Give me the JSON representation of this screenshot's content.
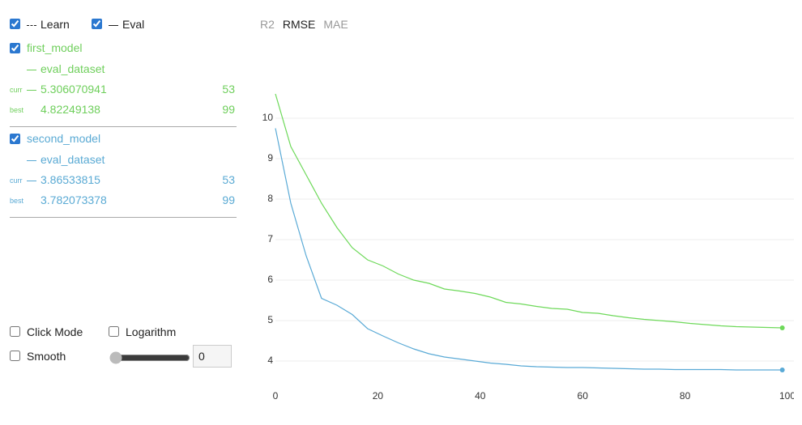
{
  "controls": {
    "learn": "Learn",
    "eval": "Eval",
    "click_mode": "Click Mode",
    "logarithm": "Logarithm",
    "smooth": "Smooth",
    "smooth_value": 0
  },
  "models": [
    {
      "name": "first_model",
      "dataset": "eval_dataset",
      "curr_label": "curr",
      "curr_value": 5.306070941,
      "curr_iter": 53,
      "best_label": "best",
      "best_value": 4.82249138,
      "best_iter": 99,
      "color": "#6fcf5c"
    },
    {
      "name": "second_model",
      "dataset": "eval_dataset",
      "curr_label": "curr",
      "curr_value": 3.86533815,
      "curr_iter": 53,
      "best_label": "best",
      "best_value": 3.782073378,
      "best_iter": 99,
      "color": "#5aaad4"
    }
  ],
  "tabs": [
    "R2",
    "RMSE",
    "MAE"
  ],
  "active_tab": 1,
  "chart_data": {
    "type": "line",
    "x": [
      0,
      3,
      6,
      9,
      12,
      15,
      18,
      21,
      24,
      27,
      30,
      33,
      36,
      39,
      42,
      45,
      48,
      51,
      54,
      57,
      60,
      63,
      66,
      69,
      72,
      75,
      78,
      81,
      84,
      87,
      90,
      93,
      96,
      99
    ],
    "series": [
      {
        "name": "first_model",
        "color": "#6ed95a",
        "values": [
          10.6,
          9.3,
          8.6,
          7.9,
          7.3,
          6.8,
          6.5,
          6.35,
          6.15,
          6.0,
          5.92,
          5.78,
          5.73,
          5.67,
          5.58,
          5.45,
          5.41,
          5.35,
          5.3,
          5.28,
          5.2,
          5.18,
          5.12,
          5.07,
          5.03,
          5.0,
          4.97,
          4.93,
          4.9,
          4.87,
          4.85,
          4.84,
          4.83,
          4.82
        ]
      },
      {
        "name": "second_model",
        "color": "#5aaad6",
        "values": [
          9.75,
          7.9,
          6.6,
          5.55,
          5.38,
          5.15,
          4.8,
          4.62,
          4.45,
          4.3,
          4.18,
          4.1,
          4.05,
          4.0,
          3.95,
          3.92,
          3.88,
          3.86,
          3.85,
          3.84,
          3.84,
          3.83,
          3.82,
          3.81,
          3.8,
          3.8,
          3.79,
          3.79,
          3.79,
          3.79,
          3.78,
          3.78,
          3.78,
          3.78
        ]
      }
    ],
    "xlim": [
      0,
      100
    ],
    "ylim": [
      3.5,
      10.9
    ],
    "xticks": [
      0,
      20,
      40,
      60,
      80,
      100
    ],
    "yticks": [
      4,
      5,
      6,
      7,
      8,
      9,
      10
    ],
    "grid": true
  }
}
